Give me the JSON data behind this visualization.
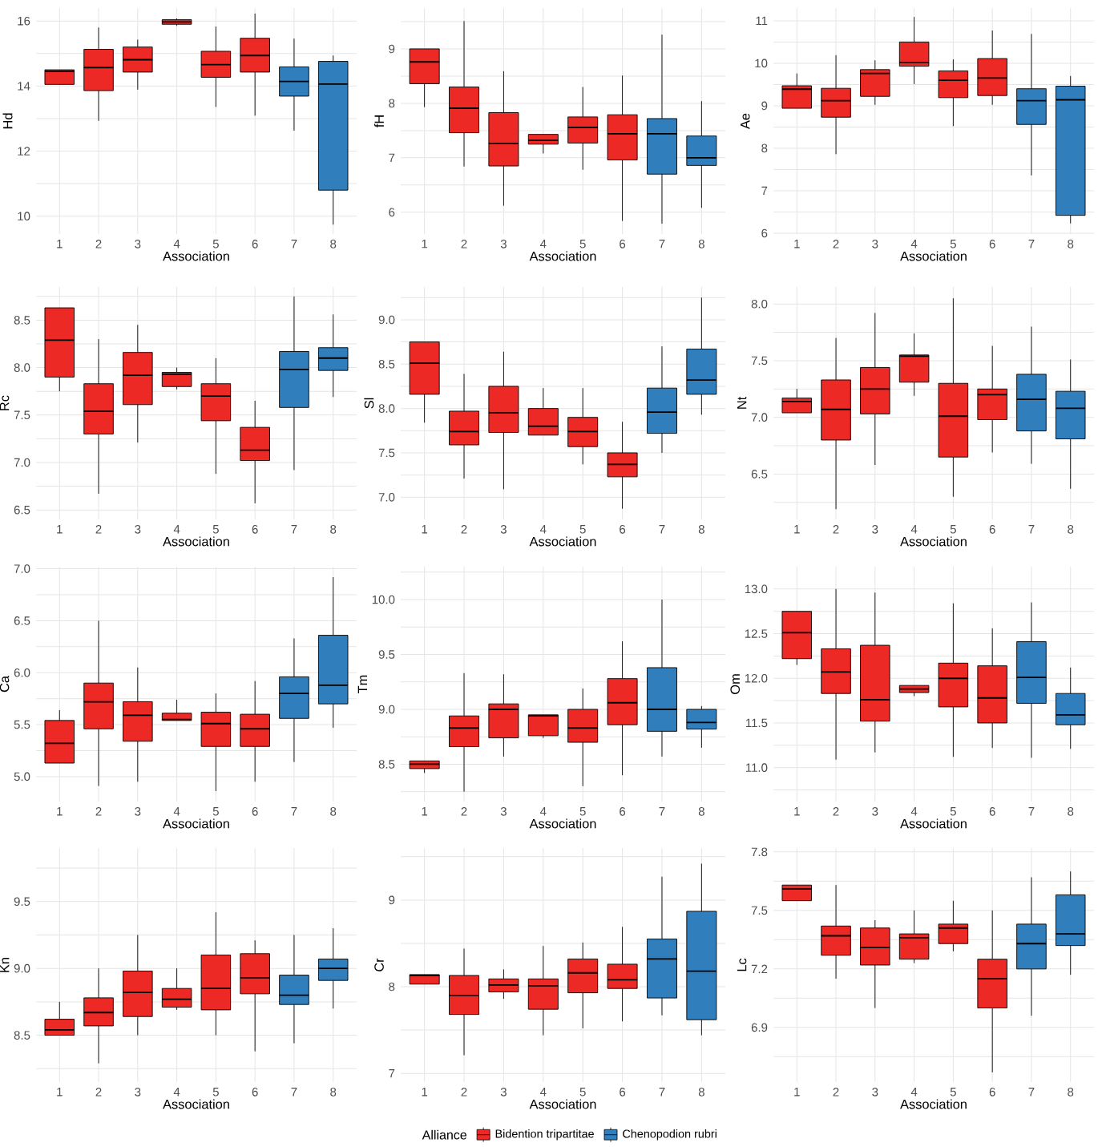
{
  "chart_data": [
    {
      "type": "box",
      "categories": [
        "1",
        "2",
        "3",
        "4",
        "5",
        "6",
        "7",
        "8"
      ],
      "xlabel": "Association",
      "ylabel": "Hd",
      "grid": true,
      "ylim": [
        9.45,
        16.4
      ],
      "yticks": [
        {
          "value": 10,
          "label": "10"
        },
        {
          "value": 11,
          "label": null
        },
        {
          "value": 12,
          "label": "12"
        },
        {
          "value": 13,
          "label": null
        },
        {
          "value": 14,
          "label": "14"
        },
        {
          "value": 15,
          "label": null
        },
        {
          "value": 16,
          "label": "16"
        }
      ],
      "series": [
        {
          "color": "#ed2926",
          "boxes": [
            {
              "low": 14.05,
              "q1": 14.05,
              "median": 14.45,
              "q3": 14.5,
              "high": 14.5
            },
            {
              "low": 12.93,
              "q1": 13.86,
              "median": 14.57,
              "q3": 15.13,
              "high": 15.8
            },
            {
              "low": 13.89,
              "q1": 14.43,
              "median": 14.81,
              "q3": 15.2,
              "high": 15.43
            },
            {
              "low": 15.85,
              "q1": 15.9,
              "median": 15.97,
              "q3": 16.04,
              "high": 16.08
            },
            {
              "low": 13.36,
              "q1": 14.27,
              "median": 14.66,
              "q3": 15.07,
              "high": 15.83
            },
            {
              "low": 13.09,
              "q1": 14.43,
              "median": 14.94,
              "q3": 15.47,
              "high": 16.23
            },
            null,
            null
          ]
        },
        {
          "color": "#317ebd",
          "boxes": [
            null,
            null,
            null,
            null,
            null,
            null,
            {
              "low": 12.63,
              "q1": 13.69,
              "median": 14.14,
              "q3": 14.59,
              "high": 15.46
            },
            {
              "low": 9.74,
              "q1": 10.8,
              "median": 14.06,
              "q3": 14.76,
              "high": 14.94
            }
          ]
        }
      ]
    },
    {
      "type": "box",
      "categories": [
        "1",
        "2",
        "3",
        "4",
        "5",
        "6",
        "7",
        "8"
      ],
      "xlabel": "Association",
      "ylabel": "fH",
      "grid": true,
      "ylim": [
        5.6,
        9.75
      ],
      "yticks": [
        {
          "value": 6,
          "label": "6"
        },
        {
          "value": 6.5,
          "label": null
        },
        {
          "value": 7,
          "label": "7"
        },
        {
          "value": 7.5,
          "label": null
        },
        {
          "value": 8,
          "label": "8"
        },
        {
          "value": 8.5,
          "label": null
        },
        {
          "value": 9,
          "label": "9"
        },
        {
          "value": 9.5,
          "label": null
        }
      ],
      "series": [
        {
          "color": "#ed2926",
          "boxes": [
            {
              "low": 7.93,
              "q1": 8.36,
              "median": 8.76,
              "q3": 9.0,
              "high": 9.0
            },
            {
              "low": 6.84,
              "q1": 7.46,
              "median": 7.91,
              "q3": 8.3,
              "high": 9.51
            },
            {
              "low": 6.12,
              "q1": 6.85,
              "median": 7.26,
              "q3": 7.83,
              "high": 8.59
            },
            {
              "low": 7.08,
              "q1": 7.25,
              "median": 7.32,
              "q3": 7.43,
              "high": 7.43
            },
            {
              "low": 6.78,
              "q1": 7.27,
              "median": 7.56,
              "q3": 7.75,
              "high": 8.3
            },
            {
              "low": 5.84,
              "q1": 6.96,
              "median": 7.44,
              "q3": 7.79,
              "high": 8.51
            },
            null,
            null
          ]
        },
        {
          "color": "#317ebd",
          "boxes": [
            null,
            null,
            null,
            null,
            null,
            null,
            {
              "low": 5.79,
              "q1": 6.7,
              "median": 7.44,
              "q3": 7.72,
              "high": 9.26
            },
            {
              "low": 6.08,
              "q1": 6.86,
              "median": 7.0,
              "q3": 7.4,
              "high": 8.04
            }
          ]
        }
      ]
    },
    {
      "type": "box",
      "categories": [
        "1",
        "2",
        "3",
        "4",
        "5",
        "6",
        "7",
        "8"
      ],
      "xlabel": "Association",
      "ylabel": "Ae",
      "grid": true,
      "ylim": [
        5.98,
        11.3
      ],
      "yticks": [
        {
          "value": 6,
          "label": "6"
        },
        {
          "value": 6.5,
          "label": null
        },
        {
          "value": 7,
          "label": "7"
        },
        {
          "value": 7.5,
          "label": null
        },
        {
          "value": 8,
          "label": "8"
        },
        {
          "value": 8.5,
          "label": null
        },
        {
          "value": 9,
          "label": "9"
        },
        {
          "value": 9.5,
          "label": null
        },
        {
          "value": 10,
          "label": "10"
        },
        {
          "value": 10.5,
          "label": null
        },
        {
          "value": 11,
          "label": "11"
        }
      ],
      "series": [
        {
          "color": "#ed2926",
          "boxes": [
            {
              "low": 8.94,
              "q1": 8.94,
              "median": 9.39,
              "q3": 9.47,
              "high": 9.76
            },
            {
              "low": 7.86,
              "q1": 8.73,
              "median": 9.12,
              "q3": 9.41,
              "high": 10.19
            },
            {
              "low": 9.02,
              "q1": 9.22,
              "median": 9.76,
              "q3": 9.85,
              "high": 10.07
            },
            {
              "low": 9.51,
              "q1": 9.93,
              "median": 10.02,
              "q3": 10.5,
              "high": 11.09
            },
            {
              "low": 8.52,
              "q1": 9.19,
              "median": 9.6,
              "q3": 9.82,
              "high": 10.09
            },
            {
              "low": 9.02,
              "q1": 9.24,
              "median": 9.65,
              "q3": 10.11,
              "high": 10.77
            },
            null,
            null
          ]
        },
        {
          "color": "#317ebd",
          "boxes": [
            null,
            null,
            null,
            null,
            null,
            null,
            {
              "low": 7.36,
              "q1": 8.56,
              "median": 9.12,
              "q3": 9.4,
              "high": 10.69
            },
            {
              "low": 6.23,
              "q1": 6.42,
              "median": 9.14,
              "q3": 9.46,
              "high": 9.7
            }
          ]
        }
      ]
    },
    {
      "type": "box",
      "categories": [
        "1",
        "2",
        "3",
        "4",
        "5",
        "6",
        "7",
        "8"
      ],
      "xlabel": "Association",
      "ylabel": "Rc",
      "grid": true,
      "ylim": [
        6.4,
        8.85
      ],
      "yticks": [
        {
          "value": 6.5,
          "label": "6.5"
        },
        {
          "value": 6.75,
          "label": null
        },
        {
          "value": 7,
          "label": "7.0"
        },
        {
          "value": 7.25,
          "label": null
        },
        {
          "value": 7.5,
          "label": "7.5"
        },
        {
          "value": 7.75,
          "label": null
        },
        {
          "value": 8,
          "label": "8.0"
        },
        {
          "value": 8.25,
          "label": null
        },
        {
          "value": 8.5,
          "label": "8.5"
        },
        {
          "value": 8.75,
          "label": null
        }
      ],
      "series": [
        {
          "color": "#ed2926",
          "boxes": [
            {
              "low": 7.75,
              "q1": 7.9,
              "median": 8.29,
              "q3": 8.63,
              "high": 8.63
            },
            {
              "low": 6.67,
              "q1": 7.3,
              "median": 7.54,
              "q3": 7.83,
              "high": 8.3
            },
            {
              "low": 7.21,
              "q1": 7.61,
              "median": 7.92,
              "q3": 8.16,
              "high": 8.45
            },
            {
              "low": 7.77,
              "q1": 7.8,
              "median": 7.93,
              "q3": 7.95,
              "high": 8.0
            },
            {
              "low": 6.88,
              "q1": 7.44,
              "median": 7.7,
              "q3": 7.83,
              "high": 8.1
            },
            {
              "low": 6.57,
              "q1": 7.02,
              "median": 7.13,
              "q3": 7.37,
              "high": 7.65
            },
            null,
            null
          ]
        },
        {
          "color": "#317ebd",
          "boxes": [
            null,
            null,
            null,
            null,
            null,
            null,
            {
              "low": 6.92,
              "q1": 7.58,
              "median": 7.98,
              "q3": 8.17,
              "high": 8.75
            },
            {
              "low": 7.69,
              "q1": 7.97,
              "median": 8.1,
              "q3": 8.21,
              "high": 8.56
            }
          ]
        }
      ]
    },
    {
      "type": "box",
      "categories": [
        "1",
        "2",
        "3",
        "4",
        "5",
        "6",
        "7",
        "8"
      ],
      "xlabel": "Association",
      "ylabel": "Sl",
      "grid": true,
      "ylim": [
        6.75,
        9.37
      ],
      "yticks": [
        {
          "value": 7,
          "label": "7.0"
        },
        {
          "value": 7.25,
          "label": null
        },
        {
          "value": 7.5,
          "label": "7.5"
        },
        {
          "value": 7.75,
          "label": null
        },
        {
          "value": 8,
          "label": "8.0"
        },
        {
          "value": 8.25,
          "label": null
        },
        {
          "value": 8.5,
          "label": "8.5"
        },
        {
          "value": 8.75,
          "label": null
        },
        {
          "value": 9,
          "label": "9.0"
        },
        {
          "value": 9.25,
          "label": null
        }
      ],
      "series": [
        {
          "color": "#ed2926",
          "boxes": [
            {
              "low": 7.84,
              "q1": 8.16,
              "median": 8.51,
              "q3": 8.75,
              "high": 8.75
            },
            {
              "low": 7.21,
              "q1": 7.59,
              "median": 7.74,
              "q3": 7.97,
              "high": 8.39
            },
            {
              "low": 7.09,
              "q1": 7.73,
              "median": 7.95,
              "q3": 8.25,
              "high": 8.64
            },
            {
              "low": 7.7,
              "q1": 7.7,
              "median": 7.8,
              "q3": 8.0,
              "high": 8.23
            },
            {
              "low": 7.37,
              "q1": 7.57,
              "median": 7.74,
              "q3": 7.9,
              "high": 8.23
            },
            {
              "low": 6.87,
              "q1": 7.23,
              "median": 7.37,
              "q3": 7.5,
              "high": 7.85
            },
            null,
            null
          ]
        },
        {
          "color": "#317ebd",
          "boxes": [
            null,
            null,
            null,
            null,
            null,
            null,
            {
              "low": 7.5,
              "q1": 7.72,
              "median": 7.96,
              "q3": 8.23,
              "high": 8.7
            },
            {
              "low": 7.93,
              "q1": 8.16,
              "median": 8.32,
              "q3": 8.67,
              "high": 9.25
            }
          ]
        }
      ]
    },
    {
      "type": "box",
      "categories": [
        "1",
        "2",
        "3",
        "4",
        "5",
        "6",
        "7",
        "8"
      ],
      "xlabel": "Association",
      "ylabel": "Nt",
      "grid": true,
      "ylim": [
        6.1,
        8.15
      ],
      "yticks": [
        {
          "value": 6.25,
          "label": null
        },
        {
          "value": 6.5,
          "label": "6.5"
        },
        {
          "value": 6.75,
          "label": null
        },
        {
          "value": 7,
          "label": "7.0"
        },
        {
          "value": 7.25,
          "label": null
        },
        {
          "value": 7.5,
          "label": "7.5"
        },
        {
          "value": 7.75,
          "label": null
        },
        {
          "value": 8,
          "label": "8.0"
        }
      ],
      "series": [
        {
          "color": "#ed2926",
          "boxes": [
            {
              "low": 7.04,
              "q1": 7.04,
              "median": 7.14,
              "q3": 7.17,
              "high": 7.25
            },
            {
              "low": 6.19,
              "q1": 6.8,
              "median": 7.07,
              "q3": 7.33,
              "high": 7.7
            },
            {
              "low": 6.58,
              "q1": 7.03,
              "median": 7.25,
              "q3": 7.44,
              "high": 7.92
            },
            {
              "low": 7.19,
              "q1": 7.31,
              "median": 7.54,
              "q3": 7.55,
              "high": 7.74
            },
            {
              "low": 6.3,
              "q1": 6.65,
              "median": 7.01,
              "q3": 7.3,
              "high": 8.05
            },
            {
              "low": 6.69,
              "q1": 6.98,
              "median": 7.2,
              "q3": 7.25,
              "high": 7.63
            },
            null,
            null
          ]
        },
        {
          "color": "#317ebd",
          "boxes": [
            null,
            null,
            null,
            null,
            null,
            null,
            {
              "low": 6.59,
              "q1": 6.88,
              "median": 7.16,
              "q3": 7.38,
              "high": 7.8
            },
            {
              "low": 6.37,
              "q1": 6.81,
              "median": 7.08,
              "q3": 7.23,
              "high": 7.51
            }
          ]
        }
      ]
    },
    {
      "type": "box",
      "categories": [
        "1",
        "2",
        "3",
        "4",
        "5",
        "6",
        "7",
        "8"
      ],
      "xlabel": "Association",
      "ylabel": "Ca",
      "grid": true,
      "ylim": [
        4.76,
        7.02
      ],
      "yticks": [
        {
          "value": 5,
          "label": "5.0"
        },
        {
          "value": 5.25,
          "label": null
        },
        {
          "value": 5.5,
          "label": "5.5"
        },
        {
          "value": 5.75,
          "label": null
        },
        {
          "value": 6,
          "label": "6.0"
        },
        {
          "value": 6.25,
          "label": null
        },
        {
          "value": 6.5,
          "label": "6.5"
        },
        {
          "value": 6.75,
          "label": null
        },
        {
          "value": 7,
          "label": "7.0"
        }
      ],
      "series": [
        {
          "color": "#ed2926",
          "boxes": [
            {
              "low": 5.13,
              "q1": 5.13,
              "median": 5.32,
              "q3": 5.54,
              "high": 5.64
            },
            {
              "low": 4.91,
              "q1": 5.46,
              "median": 5.72,
              "q3": 5.9,
              "high": 6.5
            },
            {
              "low": 4.95,
              "q1": 5.34,
              "median": 5.59,
              "q3": 5.72,
              "high": 6.05
            },
            {
              "low": 5.54,
              "q1": 5.54,
              "median": 5.55,
              "q3": 5.61,
              "high": 5.74
            },
            {
              "low": 4.86,
              "q1": 5.29,
              "median": 5.51,
              "q3": 5.62,
              "high": 5.8
            },
            {
              "low": 4.95,
              "q1": 5.29,
              "median": 5.46,
              "q3": 5.6,
              "high": 5.92
            },
            null,
            null
          ]
        },
        {
          "color": "#317ebd",
          "boxes": [
            null,
            null,
            null,
            null,
            null,
            null,
            {
              "low": 5.14,
              "q1": 5.56,
              "median": 5.8,
              "q3": 5.96,
              "high": 6.33
            },
            {
              "low": 5.47,
              "q1": 5.7,
              "median": 5.88,
              "q3": 6.36,
              "high": 6.92
            }
          ]
        }
      ]
    },
    {
      "type": "box",
      "categories": [
        "1",
        "2",
        "3",
        "4",
        "5",
        "6",
        "7",
        "8"
      ],
      "xlabel": "Association",
      "ylabel": "Tm",
      "grid": true,
      "ylim": [
        8.16,
        10.3
      ],
      "yticks": [
        {
          "value": 8.25,
          "label": null
        },
        {
          "value": 8.5,
          "label": "8.5"
        },
        {
          "value": 8.75,
          "label": null
        },
        {
          "value": 9,
          "label": "9.0"
        },
        {
          "value": 9.25,
          "label": null
        },
        {
          "value": 9.5,
          "label": "9.5"
        },
        {
          "value": 9.75,
          "label": null
        },
        {
          "value": 10,
          "label": "10.0"
        },
        {
          "value": 10.25,
          "label": null
        }
      ],
      "series": [
        {
          "color": "#ed2926",
          "boxes": [
            {
              "low": 8.42,
              "q1": 8.46,
              "median": 8.5,
              "q3": 8.53,
              "high": 8.53
            },
            {
              "low": 8.25,
              "q1": 8.66,
              "median": 8.83,
              "q3": 8.94,
              "high": 9.33
            },
            {
              "low": 8.57,
              "q1": 8.74,
              "median": 9.0,
              "q3": 9.05,
              "high": 9.32
            },
            {
              "low": 8.74,
              "q1": 8.76,
              "median": 8.94,
              "q3": 8.95,
              "high": 8.95
            },
            {
              "low": 8.3,
              "q1": 8.7,
              "median": 8.83,
              "q3": 9.0,
              "high": 9.19
            },
            {
              "low": 8.4,
              "q1": 8.86,
              "median": 9.06,
              "q3": 9.28,
              "high": 9.62
            },
            null,
            null
          ]
        },
        {
          "color": "#317ebd",
          "boxes": [
            null,
            null,
            null,
            null,
            null,
            null,
            {
              "low": 8.57,
              "q1": 8.8,
              "median": 9.0,
              "q3": 9.38,
              "high": 10.0
            },
            {
              "low": 8.65,
              "q1": 8.82,
              "median": 8.88,
              "q3": 9.0,
              "high": 9.03
            }
          ]
        }
      ]
    },
    {
      "type": "box",
      "categories": [
        "1",
        "2",
        "3",
        "4",
        "5",
        "6",
        "7",
        "8"
      ],
      "xlabel": "Association",
      "ylabel": "Om",
      "grid": true,
      "ylim": [
        10.62,
        13.25
      ],
      "yticks": [
        {
          "value": 10.75,
          "label": null
        },
        {
          "value": 11,
          "label": "11.0"
        },
        {
          "value": 11.25,
          "label": null
        },
        {
          "value": 11.5,
          "label": "11.5"
        },
        {
          "value": 11.75,
          "label": null
        },
        {
          "value": 12,
          "label": "12.0"
        },
        {
          "value": 12.25,
          "label": null
        },
        {
          "value": 12.5,
          "label": "12.5"
        },
        {
          "value": 12.75,
          "label": null
        },
        {
          "value": 13,
          "label": "13.0"
        }
      ],
      "series": [
        {
          "color": "#ed2926",
          "boxes": [
            {
              "low": 12.15,
              "q1": 12.22,
              "median": 12.51,
              "q3": 12.75,
              "high": 12.75
            },
            {
              "low": 11.09,
              "q1": 11.83,
              "median": 12.07,
              "q3": 12.33,
              "high": 13.0
            },
            {
              "low": 11.17,
              "q1": 11.52,
              "median": 11.76,
              "q3": 12.37,
              "high": 12.96
            },
            {
              "low": 11.8,
              "q1": 11.84,
              "median": 11.88,
              "q3": 11.92,
              "high": 11.92
            },
            {
              "low": 11.12,
              "q1": 11.68,
              "median": 12.0,
              "q3": 12.17,
              "high": 12.84
            },
            {
              "low": 11.22,
              "q1": 11.5,
              "median": 11.78,
              "q3": 12.14,
              "high": 12.56
            },
            null,
            null
          ]
        },
        {
          "color": "#317ebd",
          "boxes": [
            null,
            null,
            null,
            null,
            null,
            null,
            {
              "low": 11.11,
              "q1": 11.72,
              "median": 12.01,
              "q3": 12.41,
              "high": 12.85
            },
            {
              "low": 11.21,
              "q1": 11.48,
              "median": 11.59,
              "q3": 11.83,
              "high": 12.12
            }
          ]
        }
      ]
    },
    {
      "type": "box",
      "categories": [
        "1",
        "2",
        "3",
        "4",
        "5",
        "6",
        "7",
        "8"
      ],
      "xlabel": "Association",
      "ylabel": "Kn",
      "grid": true,
      "ylim": [
        8.15,
        9.9
      ],
      "yticks": [
        {
          "value": 8.25,
          "label": null
        },
        {
          "value": 8.5,
          "label": "8.5"
        },
        {
          "value": 8.75,
          "label": null
        },
        {
          "value": 9,
          "label": "9.0"
        },
        {
          "value": 9.25,
          "label": null
        },
        {
          "value": 9.5,
          "label": "9.5"
        },
        {
          "value": 9.75,
          "label": null
        }
      ],
      "series": [
        {
          "color": "#ed2926",
          "boxes": [
            {
              "low": 8.5,
              "q1": 8.5,
              "median": 8.54,
              "q3": 8.62,
              "high": 8.75
            },
            {
              "low": 8.29,
              "q1": 8.57,
              "median": 8.67,
              "q3": 8.78,
              "high": 9.0
            },
            {
              "low": 8.5,
              "q1": 8.64,
              "median": 8.82,
              "q3": 8.98,
              "high": 9.25
            },
            {
              "low": 8.69,
              "q1": 8.71,
              "median": 8.77,
              "q3": 8.85,
              "high": 9.0
            },
            {
              "low": 8.5,
              "q1": 8.69,
              "median": 8.85,
              "q3": 9.1,
              "high": 9.42
            },
            {
              "low": 8.38,
              "q1": 8.81,
              "median": 8.93,
              "q3": 9.11,
              "high": 9.21
            },
            null,
            null
          ]
        },
        {
          "color": "#317ebd",
          "boxes": [
            null,
            null,
            null,
            null,
            null,
            null,
            {
              "low": 8.44,
              "q1": 8.73,
              "median": 8.8,
              "q3": 8.95,
              "high": 9.25
            },
            {
              "low": 8.7,
              "q1": 8.91,
              "median": 9.0,
              "q3": 9.07,
              "high": 9.3
            }
          ]
        }
      ]
    },
    {
      "type": "box",
      "categories": [
        "1",
        "2",
        "3",
        "4",
        "5",
        "6",
        "7",
        "8"
      ],
      "xlabel": "Association",
      "ylabel": "Cr",
      "grid": true,
      "ylim": [
        6.9,
        9.6
      ],
      "legend": "bottom",
      "legend_title": "Alliance",
      "yticks": [
        {
          "value": 7,
          "label": "7"
        },
        {
          "value": 7.5,
          "label": null
        },
        {
          "value": 8,
          "label": "8"
        },
        {
          "value": 8.5,
          "label": null
        },
        {
          "value": 9,
          "label": "9"
        },
        {
          "value": 9.5,
          "label": null
        }
      ],
      "series": [
        {
          "name": "Bidention tripartitae",
          "color": "#ed2926",
          "boxes": [
            {
              "low": 8.03,
              "q1": 8.03,
              "median": 8.13,
              "q3": 8.14,
              "high": 8.14
            },
            {
              "low": 7.21,
              "q1": 7.68,
              "median": 7.9,
              "q3": 8.13,
              "high": 8.44
            },
            {
              "low": 7.86,
              "q1": 7.94,
              "median": 8.02,
              "q3": 8.09,
              "high": 8.2
            },
            {
              "low": 7.44,
              "q1": 7.74,
              "median": 8.01,
              "q3": 8.09,
              "high": 8.47
            },
            {
              "low": 7.52,
              "q1": 7.93,
              "median": 8.16,
              "q3": 8.32,
              "high": 8.51
            },
            {
              "low": 7.6,
              "q1": 7.98,
              "median": 8.08,
              "q3": 8.26,
              "high": 8.69
            },
            null,
            null
          ]
        },
        {
          "name": "Chenopodion rubri",
          "color": "#317ebd",
          "boxes": [
            null,
            null,
            null,
            null,
            null,
            null,
            {
              "low": 7.67,
              "q1": 7.87,
              "median": 8.32,
              "q3": 8.55,
              "high": 9.27
            },
            {
              "low": 7.44,
              "q1": 7.62,
              "median": 8.18,
              "q3": 8.87,
              "high": 9.42
            }
          ]
        }
      ]
    },
    {
      "type": "box",
      "categories": [
        "1",
        "2",
        "3",
        "4",
        "5",
        "6",
        "7",
        "8"
      ],
      "xlabel": "Association",
      "ylabel": "Lc",
      "grid": true,
      "ylim": [
        6.62,
        7.82
      ],
      "yticks": [
        {
          "value": 6.75,
          "label": null
        },
        {
          "value": 6.9,
          "label": "6.9"
        },
        {
          "value": 7.05,
          "label": null
        },
        {
          "value": 7.2,
          "label": "7.2"
        },
        {
          "value": 7.35,
          "label": null
        },
        {
          "value": 7.5,
          "label": "7.5"
        },
        {
          "value": 7.65,
          "label": null
        },
        {
          "value": 7.8,
          "label": "7.8"
        }
      ],
      "series": [
        {
          "color": "#ed2926",
          "boxes": [
            {
              "low": 7.55,
              "q1": 7.55,
              "median": 7.61,
              "q3": 7.63,
              "high": 7.63
            },
            {
              "low": 7.15,
              "q1": 7.27,
              "median": 7.37,
              "q3": 7.42,
              "high": 7.63
            },
            {
              "low": 7.0,
              "q1": 7.22,
              "median": 7.31,
              "q3": 7.41,
              "high": 7.45
            },
            {
              "low": 7.23,
              "q1": 7.25,
              "median": 7.36,
              "q3": 7.38,
              "high": 7.5
            },
            {
              "low": 7.29,
              "q1": 7.33,
              "median": 7.41,
              "q3": 7.43,
              "high": 7.55
            },
            {
              "low": 6.67,
              "q1": 7.0,
              "median": 7.15,
              "q3": 7.25,
              "high": 7.5
            },
            null,
            null
          ]
        },
        {
          "color": "#317ebd",
          "boxes": [
            null,
            null,
            null,
            null,
            null,
            null,
            {
              "low": 6.96,
              "q1": 7.2,
              "median": 7.33,
              "q3": 7.43,
              "high": 7.67
            },
            {
              "low": 7.17,
              "q1": 7.32,
              "median": 7.38,
              "q3": 7.58,
              "high": 7.7
            }
          ]
        }
      ]
    }
  ]
}
